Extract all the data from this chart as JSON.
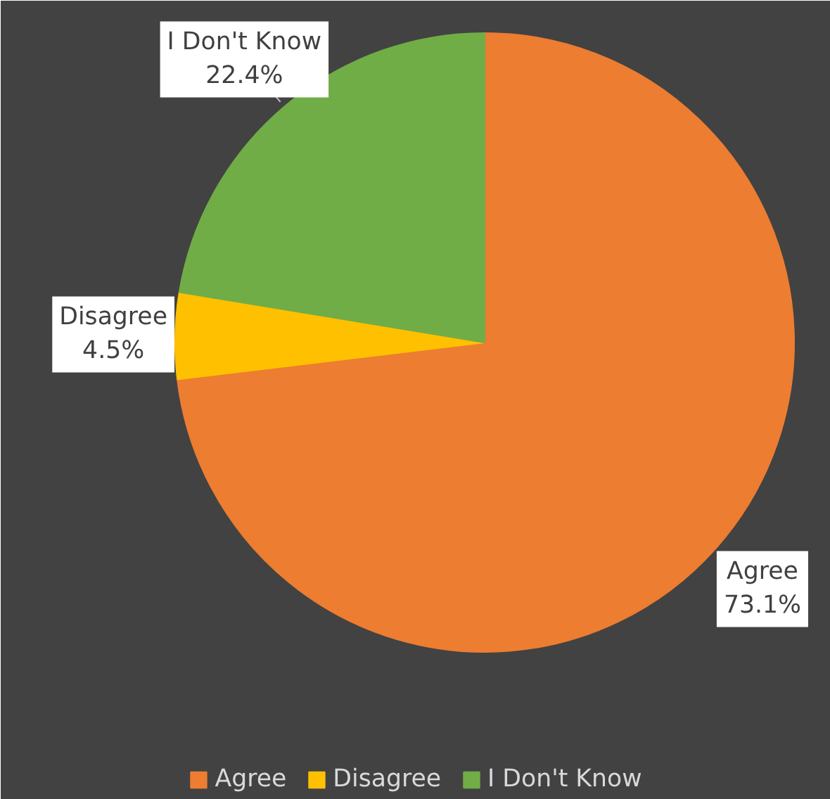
{
  "chart_data": {
    "type": "pie",
    "categories": [
      "Agree",
      "Disagree",
      "I Don't Know"
    ],
    "values": [
      73.1,
      4.5,
      22.4
    ],
    "colors": [
      "#ed7d31",
      "#ffc000",
      "#70ad47"
    ],
    "value_labels": [
      "73.1%",
      "4.5%",
      "22.4%"
    ],
    "legend": "bottom"
  }
}
